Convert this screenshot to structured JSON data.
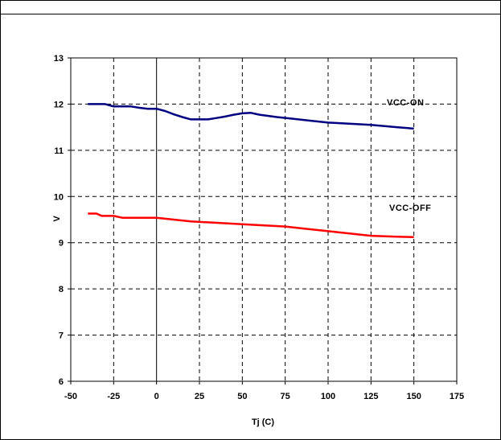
{
  "chart_data": {
    "type": "line",
    "xlabel": "Tj (C)",
    "ylabel": "V",
    "xlim": [
      -50,
      175
    ],
    "ylim": [
      6,
      13
    ],
    "xticks": [
      -50,
      -25,
      0,
      25,
      50,
      75,
      100,
      125,
      150,
      175
    ],
    "yticks": [
      6,
      7,
      8,
      9,
      10,
      11,
      12,
      13
    ],
    "grid": "dashed",
    "series": [
      {
        "name": "VCC-ON",
        "color": "#000080",
        "x": [
          -40,
          -35,
          -30,
          -27,
          -25,
          -20,
          -15,
          -10,
          -5,
          0,
          5,
          10,
          15,
          20,
          25,
          30,
          35,
          40,
          45,
          50,
          55,
          60,
          70,
          80,
          90,
          100,
          110,
          125,
          140,
          150
        ],
        "y": [
          12.0,
          12.0,
          12.0,
          11.97,
          11.95,
          11.95,
          11.95,
          11.92,
          11.9,
          11.9,
          11.85,
          11.78,
          11.72,
          11.67,
          11.67,
          11.67,
          11.7,
          11.73,
          11.77,
          11.8,
          11.81,
          11.77,
          11.72,
          11.68,
          11.64,
          11.6,
          11.58,
          11.55,
          11.5,
          11.47
        ]
      },
      {
        "name": "VCC-OFF",
        "color": "#ff0000",
        "x": [
          -40,
          -35,
          -32,
          -30,
          -25,
          -20,
          -15,
          -10,
          -5,
          0,
          10,
          20,
          30,
          50,
          75,
          100,
          125,
          140,
          150
        ],
        "y": [
          9.63,
          9.63,
          9.58,
          9.58,
          9.58,
          9.54,
          9.54,
          9.54,
          9.54,
          9.54,
          9.5,
          9.46,
          9.44,
          9.4,
          9.35,
          9.25,
          9.15,
          9.13,
          9.12
        ]
      }
    ],
    "annotations": [
      "VCC-ON",
      "VCC-OFF"
    ]
  }
}
